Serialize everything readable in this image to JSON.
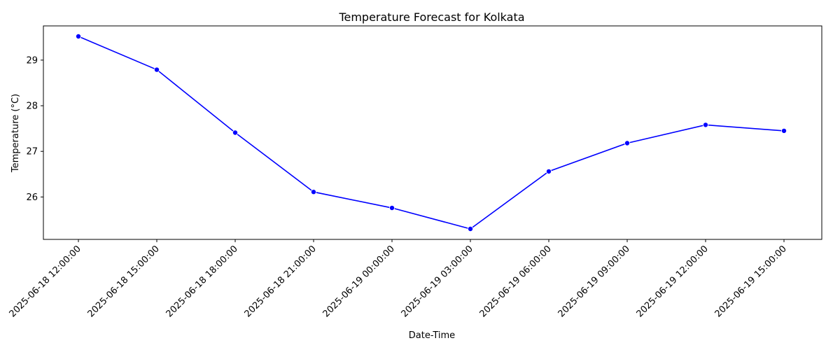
{
  "chart_data": {
    "type": "line",
    "title": "Temperature Forecast for Kolkata",
    "xlabel": "Date-Time",
    "ylabel": "Temperature (°C)",
    "categories": [
      "2025-06-18 12:00:00",
      "2025-06-18 15:00:00",
      "2025-06-18 18:00:00",
      "2025-06-18 21:00:00",
      "2025-06-19 00:00:00",
      "2025-06-19 03:00:00",
      "2025-06-19 06:00:00",
      "2025-06-19 09:00:00",
      "2025-06-19 12:00:00",
      "2025-06-19 15:00:00"
    ],
    "series": [
      {
        "values": [
          29.52,
          28.79,
          27.41,
          26.11,
          25.76,
          25.3,
          26.56,
          27.18,
          27.58,
          27.45
        ]
      }
    ],
    "yticks": [
      26,
      27,
      28,
      29
    ],
    "ylim": [
      25.07,
      29.75
    ],
    "grid": false,
    "line_color": "#0000ff",
    "marker": "circle"
  }
}
